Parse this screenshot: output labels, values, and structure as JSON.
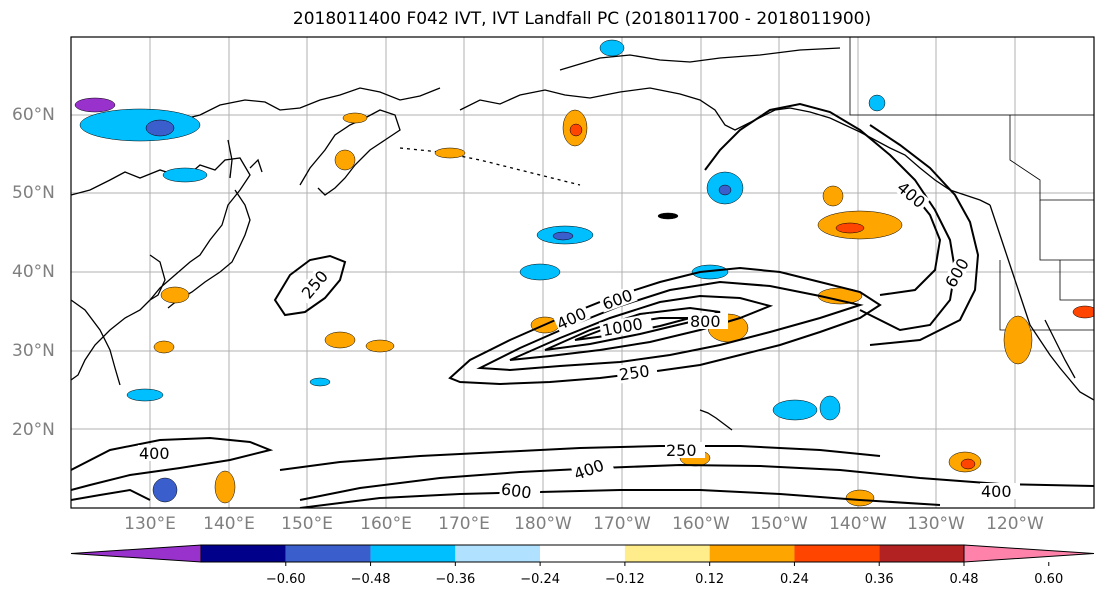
{
  "title": "2018011400 F042 IVT, IVT Landfall PC (2018011700 - 2018011900)",
  "map": {
    "lat_labels": [
      "60°N",
      "50°N",
      "40°N",
      "30°N",
      "20°N"
    ],
    "lon_labels": [
      "130°E",
      "140°E",
      "150°E",
      "160°E",
      "170°E",
      "180°W",
      "170°W",
      "160°W",
      "150°W",
      "140°W",
      "130°W",
      "120°W"
    ],
    "grid": true,
    "coastlines": true
  },
  "ivt_contour_labels": [
    "250",
    "400",
    "600",
    "1000",
    "800",
    "250",
    "250",
    "400",
    "400",
    "600",
    "400",
    "600",
    "400"
  ],
  "colorbar": {
    "colors": [
      "#9932cc",
      "#00008b",
      "#3a5fcd",
      "#00bfff",
      "#b0e2ff",
      "#ffffff",
      "#ffec8b",
      "#ffa500",
      "#ff4500",
      "#b22222",
      "#ff82ab"
    ],
    "tick_labels": [
      "−0.60",
      "−0.48",
      "−0.36",
      "−0.24",
      "−0.12",
      "0.12",
      "0.24",
      "0.36",
      "0.48",
      "0.60"
    ],
    "extend": "both"
  }
}
